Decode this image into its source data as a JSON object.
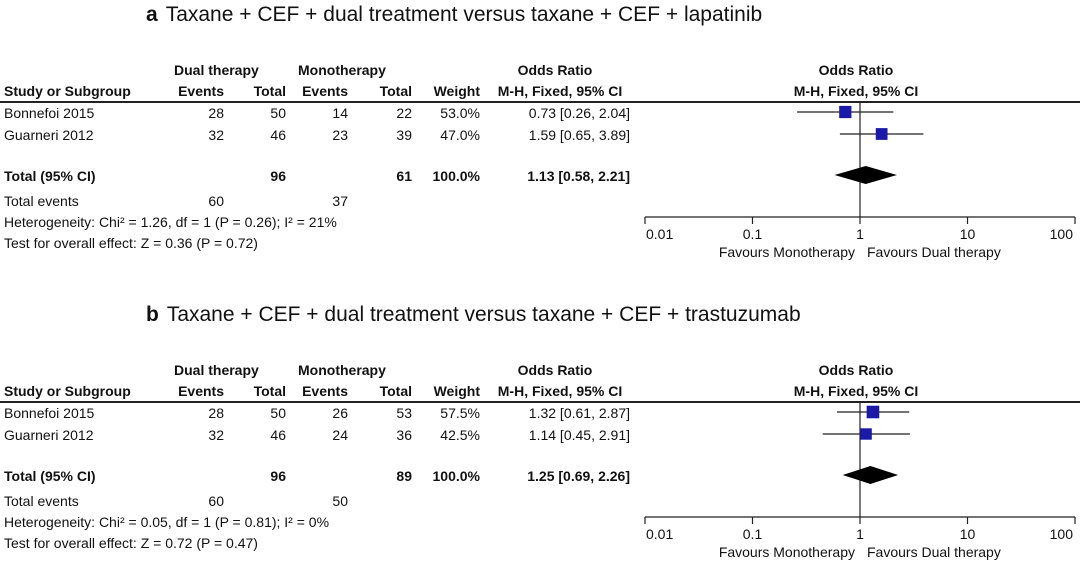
{
  "chart_data": [
    {
      "type": "forest",
      "panel_letter": "a",
      "title": "Taxane + CEF + dual treatment versus taxane + CEF + lapatinib",
      "header": {
        "group1": "Dual therapy",
        "group2": "Monotherapy",
        "or_col": "Odds Ratio",
        "or_sub": "M-H, Fixed, 95% CI",
        "study": "Study or Subgroup",
        "events": "Events",
        "total": "Total",
        "weight": "Weight",
        "plot_title": "Odds Ratio",
        "plot_sub": "M-H, Fixed, 95% CI"
      },
      "studies": [
        {
          "name": "Bonnefoi 2015",
          "e1": "28",
          "t1": "50",
          "e2": "14",
          "t2": "22",
          "weight": "53.0%",
          "ci_text": "0.73 [0.26, 2.04]",
          "or": 0.73,
          "lo": 0.26,
          "hi": 2.04,
          "w": 53.0
        },
        {
          "name": "Guarneri 2012",
          "e1": "32",
          "t1": "46",
          "e2": "23",
          "t2": "39",
          "weight": "47.0%",
          "ci_text": "1.59 [0.65, 3.89]",
          "or": 1.59,
          "lo": 0.65,
          "hi": 3.89,
          "w": 47.0
        }
      ],
      "total": {
        "label": "Total (95% CI)",
        "t1": "96",
        "t2": "61",
        "weight": "100.0%",
        "ci_text": "1.13 [0.58, 2.21]",
        "or": 1.13,
        "lo": 0.58,
        "hi": 2.21
      },
      "total_events": {
        "label": "Total events",
        "e1": "60",
        "e2": "37"
      },
      "heterogeneity": "Heterogeneity: Chi² = 1.26, df = 1 (P = 0.26); I² = 21%",
      "overall_effect": "Test for overall effect: Z = 0.36 (P = 0.72)",
      "x_axis": {
        "scale": "log",
        "ticks": [
          0.01,
          0.1,
          1,
          10,
          100
        ],
        "tick_labels": [
          "0.01",
          "0.1",
          "1",
          "10",
          "100"
        ],
        "left_label": "Favours Monotherapy",
        "right_label": "Favours Dual therapy"
      }
    },
    {
      "type": "forest",
      "panel_letter": "b",
      "title": "Taxane + CEF + dual treatment versus taxane + CEF + trastuzumab",
      "header": {
        "group1": "Dual therapy",
        "group2": "Monotherapy",
        "or_col": "Odds Ratio",
        "or_sub": "M-H, Fixed, 95% CI",
        "study": "Study or Subgroup",
        "events": "Events",
        "total": "Total",
        "weight": "Weight",
        "plot_title": "Odds Ratio",
        "plot_sub": "M-H, Fixed, 95% CI"
      },
      "studies": [
        {
          "name": "Bonnefoi 2015",
          "e1": "28",
          "t1": "50",
          "e2": "26",
          "t2": "53",
          "weight": "57.5%",
          "ci_text": "1.32 [0.61, 2.87]",
          "or": 1.32,
          "lo": 0.61,
          "hi": 2.87,
          "w": 57.5
        },
        {
          "name": "Guarneri 2012",
          "e1": "32",
          "t1": "46",
          "e2": "24",
          "t2": "36",
          "weight": "42.5%",
          "ci_text": "1.14 [0.45, 2.91]",
          "or": 1.14,
          "lo": 0.45,
          "hi": 2.91,
          "w": 42.5
        }
      ],
      "total": {
        "label": "Total (95% CI)",
        "t1": "96",
        "t2": "89",
        "weight": "100.0%",
        "ci_text": "1.25 [0.69, 2.26]",
        "or": 1.25,
        "lo": 0.69,
        "hi": 2.26
      },
      "total_events": {
        "label": "Total events",
        "e1": "60",
        "e2": "50"
      },
      "heterogeneity": "Heterogeneity: Chi² = 0.05, df = 1 (P = 0.81); I² = 0%",
      "overall_effect": "Test for overall effect: Z = 0.72 (P = 0.47)",
      "x_axis": {
        "scale": "log",
        "ticks": [
          0.01,
          0.1,
          1,
          10,
          100
        ],
        "tick_labels": [
          "0.01",
          "0.1",
          "1",
          "10",
          "100"
        ],
        "left_label": "Favours Monotherapy",
        "right_label": "Favours Dual therapy"
      }
    }
  ],
  "colors": {
    "marker": "#1a1aa6",
    "diamond": "#000000",
    "line": "#222222"
  }
}
